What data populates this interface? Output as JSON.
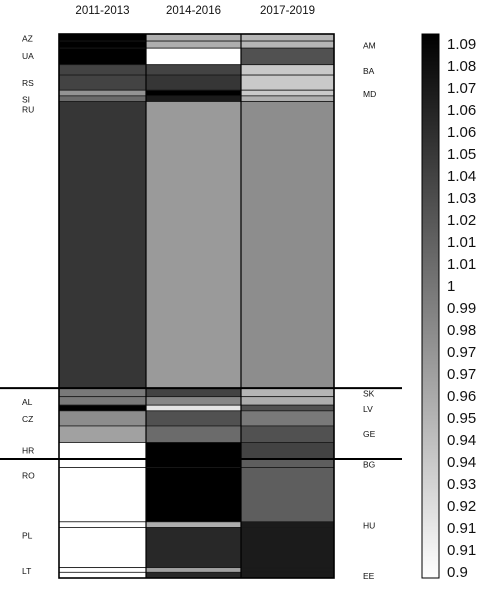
{
  "chart_data": {
    "type": "heatmap",
    "columns": [
      "2011-2013",
      "2014-2016",
      "2017-2019"
    ],
    "rows": [
      {
        "code": "AZ",
        "label_side": "left",
        "share": 0.015,
        "values": [
          1.09,
          0.96,
          0.955
        ]
      },
      {
        "code": "AM",
        "label_side": "right",
        "share": 0.015,
        "values": [
          1.09,
          0.96,
          0.955
        ]
      },
      {
        "code": "UA",
        "label_side": "left",
        "share": 0.035,
        "values": [
          1.09,
          0.9,
          1.03
        ]
      },
      {
        "code": "BA",
        "label_side": "right",
        "share": 0.022,
        "values": [
          1.04,
          1.04,
          0.94
        ]
      },
      {
        "code": "RS",
        "label_side": "left",
        "share": 0.032,
        "values": [
          1.04,
          1.05,
          0.94
        ]
      },
      {
        "code": "MD",
        "label_side": "right",
        "share": 0.012,
        "values": [
          0.98,
          1.09,
          0.94
        ]
      },
      {
        "code": "SI",
        "label_side": "left",
        "share": 0.012,
        "values": [
          1.01,
          1.07,
          0.96
        ]
      },
      {
        "code": "RU",
        "label_side": "left",
        "share": 0.607,
        "values": [
          1.05,
          0.975,
          0.985
        ]
      },
      {
        "code": "SK",
        "label_side": "right",
        "share": 0.018,
        "values": [
          1.0,
          1.04,
          0.955
        ]
      },
      {
        "code": "AL",
        "label_side": "left",
        "share": 0.018,
        "values": [
          1.0,
          0.99,
          0.96
        ]
      },
      {
        "code": "LV",
        "label_side": "right",
        "share": 0.012,
        "values": [
          1.09,
          0.92,
          1.03
        ]
      },
      {
        "code": "CZ",
        "label_side": "left",
        "share": 0.032,
        "values": [
          0.985,
          1.03,
          1.0
        ]
      },
      {
        "code": "GE",
        "label_side": "right",
        "share": 0.035,
        "values": [
          0.97,
          1.01,
          1.03
        ]
      },
      {
        "code": "HR",
        "label_side": "left",
        "share": 0.035,
        "values": [
          0.9,
          1.09,
          1.04
        ]
      },
      {
        "code": "BG",
        "label_side": "right",
        "share": 0.018,
        "values": [
          0.9,
          1.09,
          1.02
        ]
      },
      {
        "code": "RO",
        "label_side": "left",
        "share": 0.115,
        "values": [
          0.9,
          1.09,
          1.02
        ]
      },
      {
        "code": "HU",
        "label_side": "right",
        "share": 0.012,
        "values": [
          0.9,
          0.96,
          1.07
        ]
      },
      {
        "code": "PL",
        "label_side": "left",
        "share": 0.085,
        "values": [
          0.9,
          1.06,
          1.07
        ]
      },
      {
        "code": "LT",
        "label_side": "left",
        "share": 0.01,
        "values": [
          0.9,
          0.97,
          1.07
        ]
      },
      {
        "code": "EE",
        "label_side": "right",
        "share": 0.012,
        "values": [
          0.9,
          1.06,
          1.07
        ]
      }
    ],
    "left_labels": [
      "AZ",
      "UA",
      "RS",
      "SI",
      "RU",
      "AL",
      "CZ",
      "HR",
      "RO",
      "PL",
      "LT"
    ],
    "right_labels": [
      "AM",
      "BA",
      "MD",
      "SK",
      "LV",
      "GE",
      "BG",
      "HU",
      "EE"
    ],
    "group_separators_after": [
      "RU",
      "HR"
    ],
    "colorbar": {
      "min": 0.9,
      "max": 1.09,
      "tick_labels": [
        "1.09",
        "1.08",
        "1.07",
        "1.06",
        "1.06",
        "1.05",
        "1.04",
        "1.03",
        "1.02",
        "1.01",
        "1.01",
        "1",
        "0.99",
        "0.98",
        "0.97",
        "0.97",
        "0.96",
        "0.95",
        "0.94",
        "0.94",
        "0.93",
        "0.92",
        "0.91",
        "0.91",
        "0.9"
      ],
      "low_color": "#ffffff",
      "high_color": "#000000"
    },
    "grid": false,
    "title": "",
    "xlabel": "",
    "ylabel": ""
  }
}
